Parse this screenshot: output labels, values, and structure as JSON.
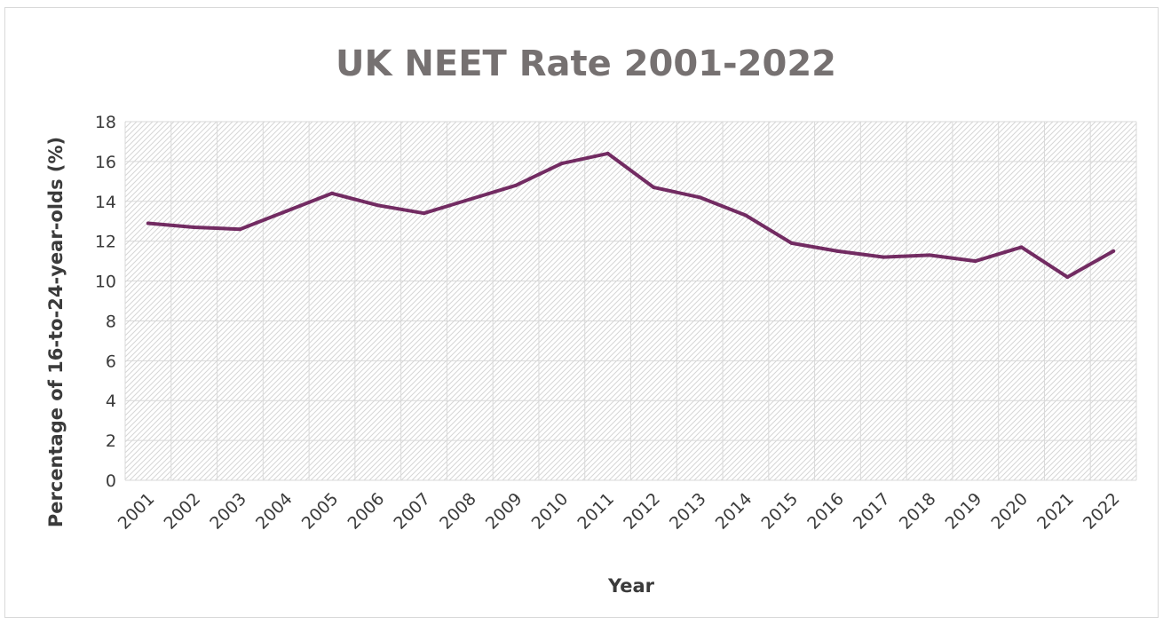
{
  "chart_data": {
    "type": "line",
    "title": "UK NEET Rate 2001-2022",
    "xlabel": "Year",
    "ylabel": "Percentage of 16-to-24-year-olds (%)",
    "x": [
      "2001",
      "2002",
      "2003",
      "2004",
      "2005",
      "2006",
      "2007",
      "2008",
      "2009",
      "2010",
      "2011",
      "2012",
      "2013",
      "2014",
      "2015",
      "2016",
      "2017",
      "2018",
      "2019",
      "2020",
      "2021",
      "2022"
    ],
    "series": [
      {
        "values": [
          12.9,
          12.7,
          12.6,
          13.5,
          14.4,
          13.8,
          13.4,
          14.1,
          14.8,
          15.9,
          16.4,
          14.7,
          14.2,
          13.3,
          11.9,
          11.5,
          11.2,
          11.3,
          11.0,
          11.7,
          10.2,
          11.5
        ],
        "color": "#722b62"
      }
    ],
    "ylim": [
      0,
      18
    ],
    "yticks": [
      "0",
      "2",
      "4",
      "6",
      "8",
      "10",
      "12",
      "14",
      "16",
      "18"
    ],
    "grid": true,
    "legend": "none"
  }
}
